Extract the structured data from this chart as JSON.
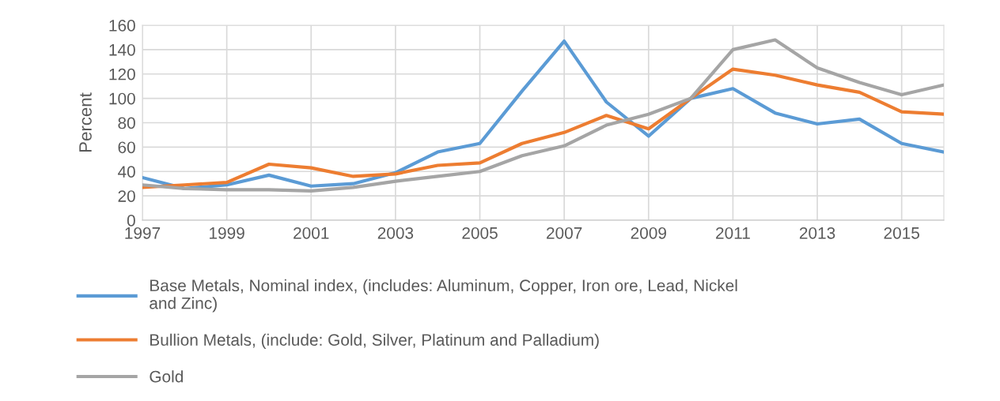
{
  "chart_data": {
    "type": "line",
    "ylabel": "Percent",
    "x": [
      1997,
      1998,
      1999,
      2000,
      2001,
      2002,
      2003,
      2004,
      2005,
      2006,
      2007,
      2008,
      2009,
      2010,
      2011,
      2012,
      2013,
      2014,
      2015,
      2016
    ],
    "series": [
      {
        "name": "Base Metals, Nominal index, (includes: Aluminum, Copper, Iron ore, Lead, Nickel and Zinc)",
        "color": "#5b9bd5",
        "values": [
          35,
          26,
          29,
          37,
          28,
          30,
          39,
          56,
          63,
          106,
          147,
          97,
          69,
          100,
          108,
          88,
          79,
          83,
          63,
          56
        ]
      },
      {
        "name": "Bullion Metals, (include: Gold, Silver, Platinum and Palladium)",
        "color": "#ed7d31",
        "values": [
          27,
          29,
          31,
          46,
          43,
          36,
          38,
          45,
          47,
          63,
          72,
          86,
          75,
          100,
          124,
          119,
          111,
          105,
          89,
          87
        ]
      },
      {
        "name": "Gold",
        "color": "#a5a5a5",
        "values": [
          29,
          26,
          25,
          25,
          24,
          27,
          32,
          36,
          40,
          53,
          61,
          78,
          87,
          100,
          140,
          148,
          125,
          113,
          103,
          111
        ]
      }
    ],
    "xlim": [
      1997,
      2016
    ],
    "xticks": [
      1997,
      1999,
      2001,
      2003,
      2005,
      2007,
      2009,
      2011,
      2013,
      2015
    ],
    "ylim": [
      0,
      160
    ],
    "yticks": [
      0,
      20,
      40,
      60,
      80,
      100,
      120,
      140,
      160
    ],
    "grid": true,
    "legend": "bottom",
    "marker": "none",
    "line_style": "solid"
  }
}
